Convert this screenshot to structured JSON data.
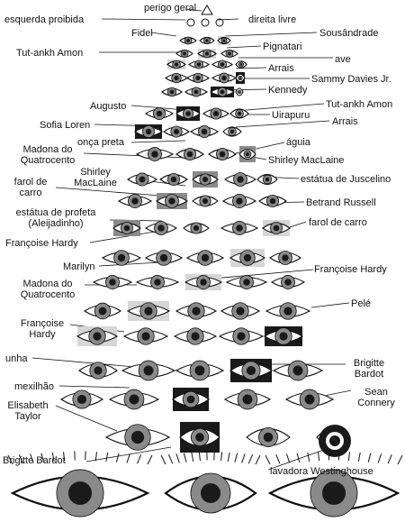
{
  "labels": {
    "perigo_geral": "perigo geral",
    "esquerda_proibida": "esquerda proibida",
    "direita_livre": "direita livre",
    "fidel": "Fidel",
    "sousandrade": "Sousândrade",
    "tut_ankh_amon_1": "Tut-ankh Amon",
    "pignatari": "Pignatari",
    "ave": "ave",
    "arrais_1": "Arrais",
    "sammy_davies": "Sammy Davies Jr.",
    "kennedy": "Kennedy",
    "augusto": "Augusto",
    "tut_ankh_amon_2": "Tut-ankh Amon",
    "uirapuru": "Uirapuru",
    "sofia_loren": "Sofia Loren",
    "arrais_2": "Arrais",
    "onca_preta": "onça preta",
    "aguia": "águia",
    "madona_1": "Madona do Quatrocento",
    "shirley_1": "Shirley MacLaine",
    "shirley_2": "Shirley MacLaine",
    "estatua_juscelino": "estátua de Juscelino",
    "farol_1": "farol de carro",
    "betrand_russell": "Betrand Russell",
    "estatua_profeta": "estátua de profeta (Aleijadinho)",
    "farol_2": "farol de carro",
    "francoise_1": "Françoise Hardy",
    "marilyn": "Marilyn",
    "francoise_2": "Françoise Hardy",
    "madona_2": "Madona do Quatrocento",
    "pele": "Pelé",
    "francoise_3": "Françoise Hardy",
    "unha": "unha",
    "brigitte_1": "Brigitte Bardot",
    "mexilhao": "mexilhão",
    "sean_connery": "Sean Connery",
    "elisabeth_taylor": "Elisabeth Taylor",
    "brigitte_2": "Brigitte Bardot",
    "lavadora": "lavadora Westinghouse"
  },
  "colors": {
    "ink": "#111111",
    "photo_dark": "#1a1a1a",
    "photo_mid": "#8a8a8a",
    "photo_light": "#d6d6d6"
  }
}
